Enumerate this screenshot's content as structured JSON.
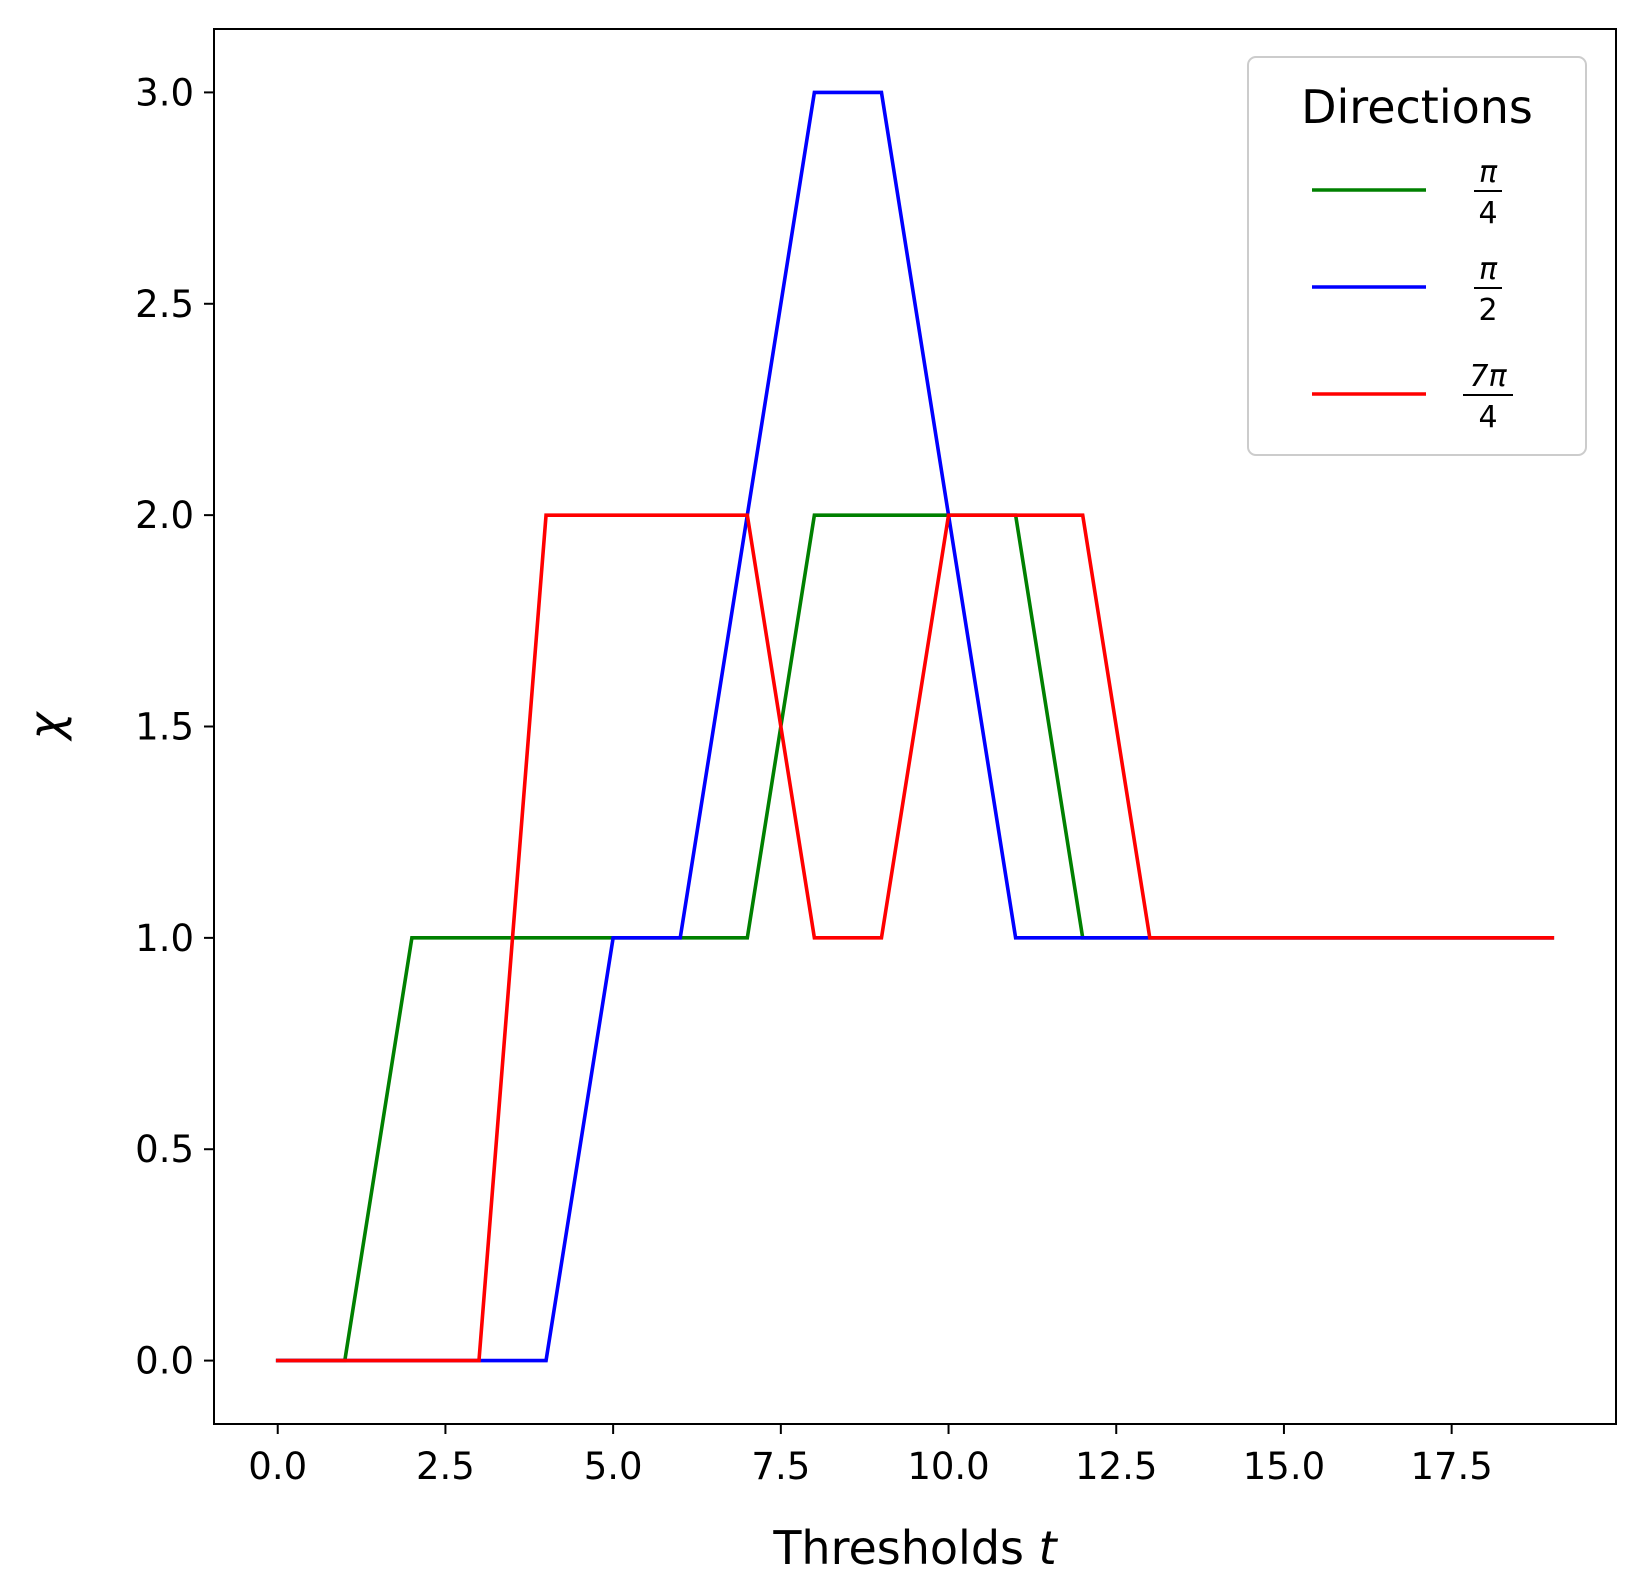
{
  "chart_data": {
    "type": "line",
    "xlabel": "Thresholds",
    "xlabel_var": "t",
    "ylabel": "χ",
    "xlim": [
      -0.95,
      19.95
    ],
    "ylim": [
      -0.15,
      3.15
    ],
    "xticks": [
      0,
      2.5,
      5,
      7.5,
      10,
      12.5,
      15,
      17.5
    ],
    "xtick_labels": [
      "0.0",
      "2.5",
      "5.0",
      "7.5",
      "10.0",
      "12.5",
      "15.0",
      "17.5"
    ],
    "yticks": [
      0,
      0.5,
      1,
      1.5,
      2,
      2.5,
      3
    ],
    "ytick_labels": [
      "0.0",
      "0.5",
      "1.0",
      "1.5",
      "2.0",
      "2.5",
      "3.0"
    ],
    "grid": false,
    "legend": {
      "title": "Directions",
      "placement": "top-right"
    },
    "x": [
      0,
      1,
      2,
      3,
      4,
      5,
      6,
      7,
      8,
      9,
      10,
      11,
      12,
      13,
      14,
      15,
      16,
      17,
      18,
      19
    ],
    "series": [
      {
        "name": "π/4",
        "label_num": "π",
        "label_den": "4",
        "color": "#008000",
        "values": [
          0,
          0,
          1,
          1,
          1,
          1,
          1,
          1,
          2,
          2,
          2,
          2,
          1,
          1,
          1,
          1,
          1,
          1,
          1,
          1
        ]
      },
      {
        "name": "π/2",
        "label_num": "π",
        "label_den": "2",
        "color": "#0000ff",
        "values": [
          0,
          0,
          0,
          0,
          0,
          1,
          1,
          2,
          3,
          3,
          2,
          1,
          1,
          1,
          1,
          1,
          1,
          1,
          1,
          1
        ]
      },
      {
        "name": "7π/4",
        "label_num": "7π",
        "label_den": "4",
        "color": "#ff0000",
        "values": [
          0,
          0,
          0,
          0,
          2,
          2,
          2,
          2,
          1,
          1,
          2,
          2,
          2,
          1,
          1,
          1,
          1,
          1,
          1,
          1
        ]
      }
    ]
  }
}
